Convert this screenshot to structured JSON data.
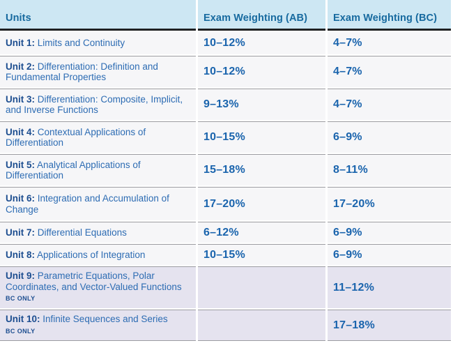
{
  "table": {
    "columns": {
      "units": "Units",
      "ab": "Exam Weighting (AB)",
      "bc": "Exam Weighting (BC)"
    },
    "colors": {
      "header_bg": "#cde7f3",
      "header_text": "#176a9f",
      "row_bg": "#f6f6f8",
      "bc_only_row_bg": "#e5e3ef",
      "unit_bold_text": "#1d4e90",
      "unit_text": "#2d6cb3",
      "pct_text": "#1a64ad",
      "header_border": "#1f2022",
      "row_separator": "#9c9ca1"
    },
    "bc_only_label": "BC ONLY",
    "rows": [
      {
        "unit": "Unit 1:",
        "title": "Limits and Continuity",
        "ab": "10–12%",
        "bc": "4–7%"
      },
      {
        "unit": "Unit 2:",
        "title": "Differentiation: Definition and Fundamental Properties",
        "ab": "10–12%",
        "bc": "4–7%"
      },
      {
        "unit": "Unit 3:",
        "title": "Differentiation: Composite, Implicit, and Inverse Functions",
        "ab": "9–13%",
        "bc": "4–7%"
      },
      {
        "unit": "Unit 4:",
        "title": "Contextual Applications of Differentiation",
        "ab": "10–15%",
        "bc": "6–9%"
      },
      {
        "unit": "Unit 5:",
        "title": "Analytical Applications of Differentiation",
        "ab": "15–18%",
        "bc": "8–11%"
      },
      {
        "unit": "Unit 6:",
        "title": "Integration and Accumulation of Change",
        "ab": "17–20%",
        "bc": "17–20%"
      },
      {
        "unit": "Unit 7:",
        "title": "Differential Equations",
        "ab": "6–12%",
        "bc": "6–9%"
      },
      {
        "unit": "Unit 8:",
        "title": "Applications of Integration",
        "ab": "10–15%",
        "bc": "6–9%"
      },
      {
        "unit": "Unit 9:",
        "title": "Parametric Equations, Polar Coordinates, and Vector-Valued Functions",
        "tag": "BC ONLY",
        "ab": "",
        "bc": "11–12%"
      },
      {
        "unit": "Unit 10:",
        "title": "Infinite Sequences and Series",
        "tag": "BC ONLY",
        "ab": "",
        "bc": "17–18%"
      }
    ]
  }
}
